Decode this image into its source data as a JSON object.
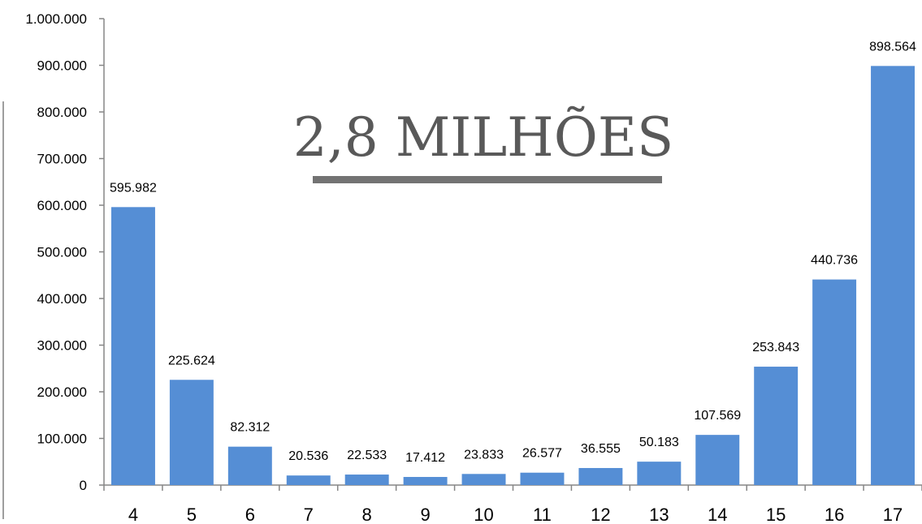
{
  "chart_data": {
    "type": "bar",
    "categories": [
      "4",
      "5",
      "6",
      "7",
      "8",
      "9",
      "10",
      "11",
      "12",
      "13",
      "14",
      "15",
      "16",
      "17"
    ],
    "values": [
      595982,
      225624,
      82312,
      20536,
      22533,
      17412,
      23833,
      26577,
      36555,
      50183,
      107569,
      253843,
      440736,
      898564
    ],
    "value_labels": [
      "595.982",
      "225.624",
      "82.312",
      "20.536",
      "22.533",
      "17.412",
      "23.833",
      "26.577",
      "36.555",
      "50.183",
      "107.569",
      "253.843",
      "440.736",
      "898.564"
    ],
    "yticks": [
      0,
      100000,
      200000,
      300000,
      400000,
      500000,
      600000,
      700000,
      800000,
      900000,
      1000000
    ],
    "ytick_labels": [
      "0",
      "100.000",
      "200.000",
      "300.000",
      "400.000",
      "500.000",
      "600.000",
      "700.000",
      "800.000",
      "900.000",
      "1.000.000"
    ],
    "ylim": [
      0,
      1000000
    ],
    "annotation": "2,8 MILHÕES",
    "grid": false,
    "legend": "none",
    "bar_color": "#558ED5",
    "annotation_color": "#595959"
  }
}
